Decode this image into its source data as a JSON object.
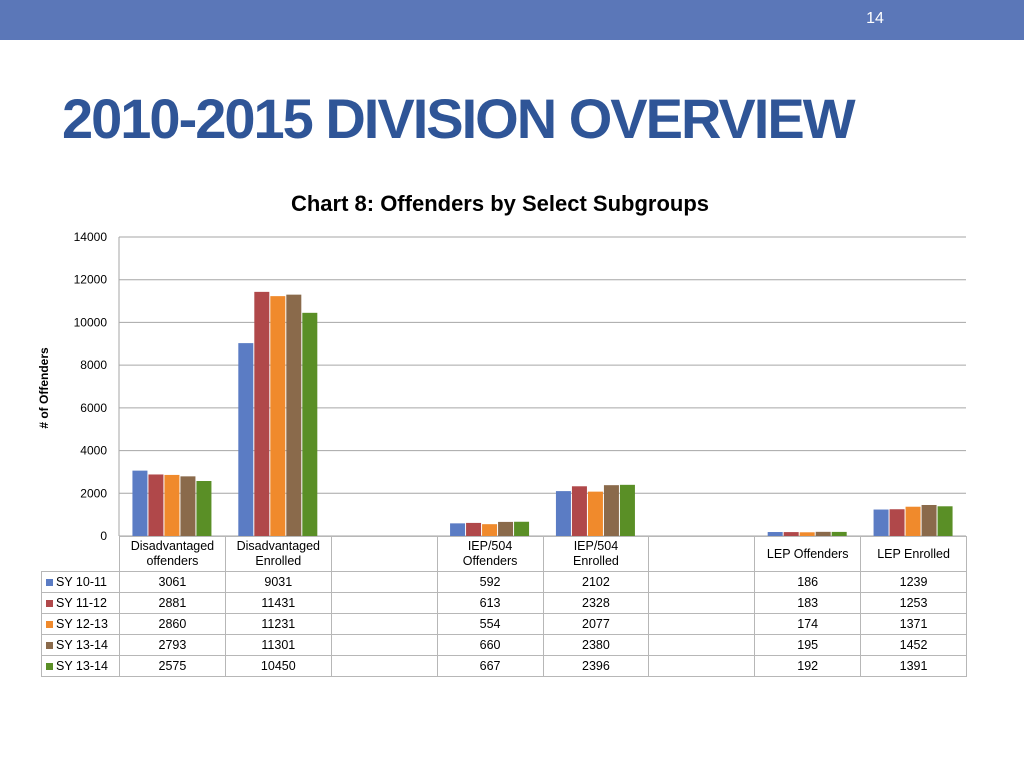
{
  "slide": {
    "number": "14",
    "title": "2010-2015 DIVISION OVERVIEW",
    "header_color": "#5b77b8",
    "title_color": "#2f5597"
  },
  "chart_data": {
    "type": "bar",
    "title": "Chart 8: Offenders by Select Subgroups",
    "xlabel": "",
    "ylabel": "# of Offenders",
    "ylim": [
      0,
      14000
    ],
    "yticks": [
      "0",
      "2000",
      "4000",
      "6000",
      "8000",
      "10000",
      "12000",
      "14000"
    ],
    "grid": true,
    "legend": "data table below chart",
    "categories": [
      [
        "Disadvantaged",
        "offenders"
      ],
      [
        "Disadvantaged",
        "Enrolled"
      ],
      [],
      [
        "IEP/504",
        "Offenders"
      ],
      [
        "IEP/504",
        "Enrolled"
      ],
      [],
      [
        "LEP Offenders"
      ],
      [
        "LEP Enrolled"
      ]
    ],
    "series": [
      {
        "name": "SY 10-11",
        "color": "#5b7cc4",
        "values": [
          "3061",
          "9031",
          "",
          "592",
          "2102",
          "",
          "186",
          "1239"
        ]
      },
      {
        "name": "SY 11-12",
        "color": "#b0484a",
        "values": [
          "2881",
          "11431",
          "",
          "613",
          "2328",
          "",
          "183",
          "1253"
        ]
      },
      {
        "name": "SY 12-13",
        "color": "#f08a2c",
        "values": [
          "2860",
          "11231",
          "",
          "554",
          "2077",
          "",
          "174",
          "1371"
        ]
      },
      {
        "name": "SY 13-14",
        "color": "#8a6a4b",
        "values": [
          "2793",
          "11301",
          "",
          "660",
          "2380",
          "",
          "195",
          "1452"
        ]
      },
      {
        "name": "SY 13-14",
        "color": "#5a8f26",
        "values": [
          "2575",
          "10450",
          "",
          "667",
          "2396",
          "",
          "192",
          "1391"
        ]
      }
    ]
  }
}
